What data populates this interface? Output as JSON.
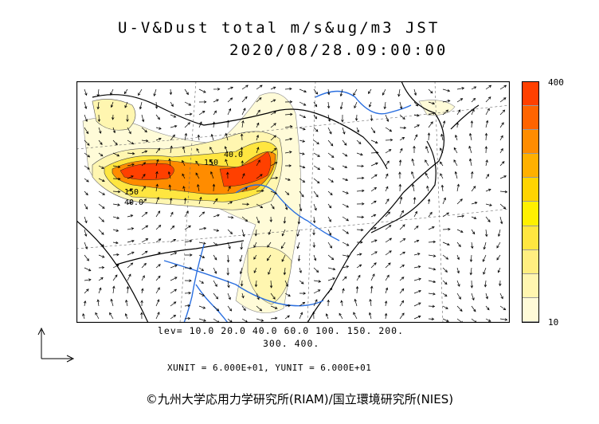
{
  "title": {
    "line1": "U-V&Dust total m/s&ug/m3 JST",
    "line2": "2020/08/28.09:00:00"
  },
  "legend": {
    "max_label": "400",
    "min_label": "10",
    "levels_line1": "lev= 10.0 20.0 40.0 60.0 100. 150. 200.",
    "levels_line2": "300. 400.",
    "colors": [
      "#fffbd8",
      "#fff6b0",
      "#ffee80",
      "#ffe640",
      "#fff000",
      "#ffd400",
      "#ffb000",
      "#ff8c00",
      "#ff6400",
      "#ff4000"
    ]
  },
  "units": {
    "text": "XUNIT = 6.000E+01, YUNIT = 6.000E+01"
  },
  "contour_labels": [
    "150",
    "40.0",
    "40.0",
    "150"
  ],
  "copyright": "©九州大学応用力学研究所(RIAM)/国立環境研究所(NIES)"
}
